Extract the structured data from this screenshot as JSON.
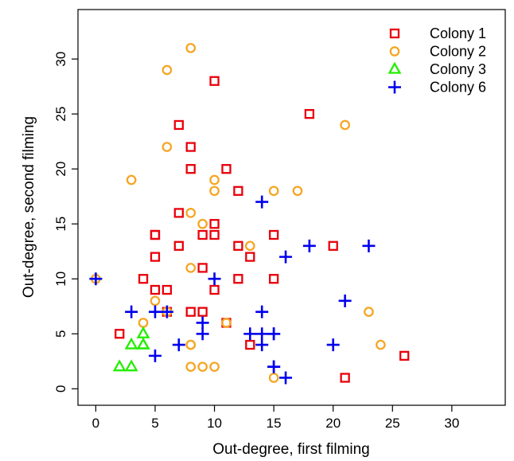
{
  "chart_data": {
    "type": "scatter",
    "xlabel": "Out-degree, first filming",
    "ylabel": "Out-degree, second filming",
    "xlim": [
      -1.5,
      34.5
    ],
    "ylim": [
      -1.5,
      34.5
    ],
    "x_ticks": [
      0,
      5,
      10,
      15,
      20,
      25,
      30
    ],
    "y_ticks": [
      0,
      5,
      10,
      15,
      20,
      25,
      30
    ],
    "x_tick_labels": [
      "0",
      "5",
      "10",
      "15",
      "20",
      "25",
      "30"
    ],
    "y_tick_labels": [
      "0",
      "5",
      "10",
      "15",
      "20",
      "25",
      "30"
    ],
    "legend_position": "top-right",
    "series": [
      {
        "name": "Colony 1",
        "marker": "square",
        "color": "#e8000b",
        "points": [
          [
            10,
            28
          ],
          [
            18,
            25
          ],
          [
            7,
            24
          ],
          [
            8,
            22
          ],
          [
            8,
            20
          ],
          [
            11,
            20
          ],
          [
            12,
            18
          ],
          [
            7,
            16
          ],
          [
            10,
            15
          ],
          [
            5,
            14
          ],
          [
            5,
            14
          ],
          [
            9,
            14
          ],
          [
            10,
            14
          ],
          [
            15,
            14
          ],
          [
            7,
            13
          ],
          [
            12,
            13
          ],
          [
            20,
            13
          ],
          [
            5,
            12
          ],
          [
            13,
            12
          ],
          [
            9,
            11
          ],
          [
            4,
            10
          ],
          [
            12,
            10
          ],
          [
            15,
            10
          ],
          [
            5,
            9
          ],
          [
            6,
            9
          ],
          [
            10,
            9
          ],
          [
            8,
            7
          ],
          [
            9,
            7
          ],
          [
            6,
            7
          ],
          [
            2,
            5
          ],
          [
            11,
            6
          ],
          [
            13,
            4
          ],
          [
            26,
            3
          ],
          [
            21,
            1
          ]
        ]
      },
      {
        "name": "Colony 2",
        "marker": "circle",
        "color": "#f5a623",
        "points": [
          [
            8,
            31
          ],
          [
            6,
            29
          ],
          [
            21,
            24
          ],
          [
            6,
            22
          ],
          [
            3,
            19
          ],
          [
            10,
            19
          ],
          [
            10,
            18
          ],
          [
            15,
            18
          ],
          [
            17,
            18
          ],
          [
            8,
            16
          ],
          [
            9,
            15
          ],
          [
            13,
            13
          ],
          [
            8,
            11
          ],
          [
            0,
            10
          ],
          [
            5,
            8
          ],
          [
            6,
            7
          ],
          [
            23,
            7
          ],
          [
            4,
            6
          ],
          [
            11,
            6
          ],
          [
            8,
            4
          ],
          [
            8,
            4
          ],
          [
            24,
            4
          ],
          [
            8,
            2
          ],
          [
            9,
            2
          ],
          [
            10,
            2
          ],
          [
            15,
            1
          ]
        ]
      },
      {
        "name": "Colony 3",
        "marker": "triangle",
        "color": "#22ee00",
        "points": [
          [
            4,
            5
          ],
          [
            3,
            4
          ],
          [
            4,
            4
          ],
          [
            4,
            4
          ],
          [
            2,
            2
          ],
          [
            3,
            2
          ]
        ]
      },
      {
        "name": "Colony 6",
        "marker": "plus",
        "color": "#0000ee",
        "points": [
          [
            14,
            17
          ],
          [
            16,
            12
          ],
          [
            18,
            13
          ],
          [
            23,
            13
          ],
          [
            0,
            10
          ],
          [
            10,
            10
          ],
          [
            3,
            7
          ],
          [
            5,
            7
          ],
          [
            6,
            7
          ],
          [
            14,
            7
          ],
          [
            21,
            8
          ],
          [
            9,
            6
          ],
          [
            9,
            5
          ],
          [
            13,
            5
          ],
          [
            14,
            5
          ],
          [
            15,
            5
          ],
          [
            15,
            5
          ],
          [
            7,
            4
          ],
          [
            14,
            4
          ],
          [
            20,
            4
          ],
          [
            5,
            3
          ],
          [
            15,
            2
          ],
          [
            15,
            2
          ],
          [
            16,
            1
          ]
        ]
      }
    ]
  }
}
